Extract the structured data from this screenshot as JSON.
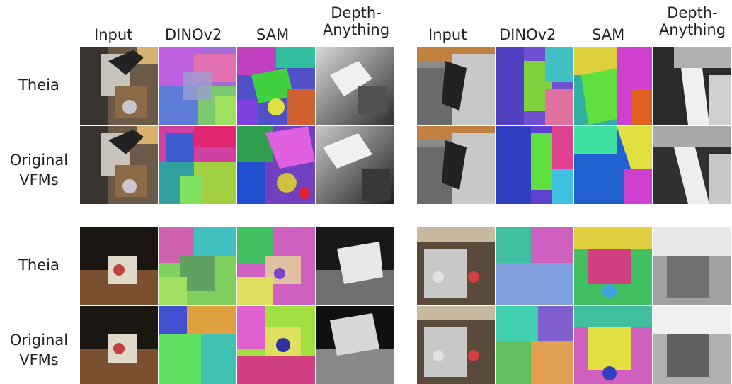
{
  "figure": {
    "column_headers_left": [
      "Input",
      "DINOv2",
      "SAM",
      "Depth-\nAnything"
    ],
    "column_headers_right": [
      "Input",
      "DINOv2",
      "SAM",
      "Depth-\nAnything"
    ],
    "row_labels": [
      "Theia",
      "Original\nVFMs",
      "Theia",
      "Original\nVFMs"
    ]
  }
}
